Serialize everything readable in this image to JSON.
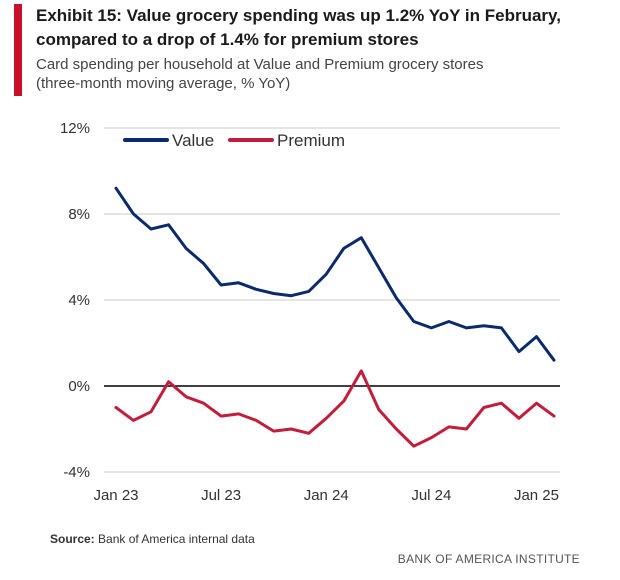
{
  "header": {
    "title_line1": "Exhibit 15: Value grocery spending was up 1.2% YoY in February,",
    "title_line2": "compared to a drop of 1.4% for premium stores",
    "subtitle_line1": "Card spending per household at Value and Premium grocery stores",
    "subtitle_line2": "(three-month moving average, % YoY)"
  },
  "footer": {
    "source_label": "Source:",
    "source_text": "Bank of America internal data",
    "brand": "BANK OF AMERICA INSTITUTE"
  },
  "colors": {
    "accent": "#c8102e",
    "value_series": "#0b2a6e",
    "premium_series": "#c01e3a",
    "zero_line": "#000000",
    "grid": "#c8c8c8"
  },
  "chart_data": {
    "type": "line",
    "x": [
      "2023-01",
      "2023-02",
      "2023-03",
      "2023-04",
      "2023-05",
      "2023-06",
      "2023-07",
      "2023-08",
      "2023-09",
      "2023-10",
      "2023-11",
      "2023-12",
      "2024-01",
      "2024-02",
      "2024-03",
      "2024-04",
      "2024-05",
      "2024-06",
      "2024-07",
      "2024-08",
      "2024-09",
      "2024-10",
      "2024-11",
      "2024-12",
      "2025-01",
      "2025-02"
    ],
    "series": [
      {
        "name": "Value",
        "color": "#0b2a6e",
        "values": [
          9.2,
          8.0,
          7.3,
          7.5,
          6.4,
          5.7,
          4.7,
          4.8,
          4.5,
          4.3,
          4.2,
          4.4,
          5.2,
          6.4,
          6.9,
          5.5,
          4.1,
          3.0,
          2.7,
          3.0,
          2.7,
          2.8,
          2.7,
          1.6,
          2.3,
          1.2
        ]
      },
      {
        "name": "Premium",
        "color": "#c01e3a",
        "values": [
          -1.0,
          -1.6,
          -1.2,
          0.2,
          -0.5,
          -0.8,
          -1.4,
          -1.3,
          -1.6,
          -2.1,
          -2.0,
          -2.2,
          -1.5,
          -0.7,
          0.7,
          -1.1,
          -2.0,
          -2.8,
          -2.4,
          -1.9,
          -2.0,
          -1.0,
          -0.8,
          -1.5,
          -0.8,
          -1.4
        ]
      }
    ],
    "yticks": [
      {
        "value": 12,
        "label": "12%"
      },
      {
        "value": 8,
        "label": "8%"
      },
      {
        "value": 4,
        "label": "4%"
      },
      {
        "value": 0,
        "label": "0%"
      },
      {
        "value": -4,
        "label": "-4%"
      }
    ],
    "xticks": [
      {
        "index": 0,
        "label": "Jan 23"
      },
      {
        "index": 6,
        "label": "Jul 23"
      },
      {
        "index": 12,
        "label": "Jan 24"
      },
      {
        "index": 18,
        "label": "Jul 24"
      },
      {
        "index": 24,
        "label": "Jan 25"
      }
    ],
    "ylim": [
      -4,
      12
    ],
    "grid": true,
    "legend_position": "top-left",
    "xlabel": "",
    "ylabel": ""
  }
}
